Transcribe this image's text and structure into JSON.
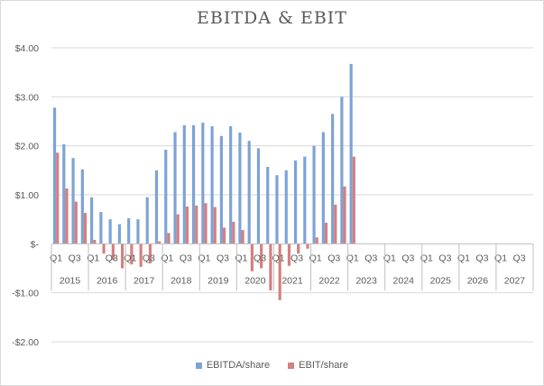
{
  "chart_data": {
    "type": "bar",
    "title": "EBITDA & EBIT",
    "y_ticks": [
      "$4.00",
      "$3.00",
      "$2.00",
      "$1.00",
      "$-",
      "-$1.00",
      "-$2.00"
    ],
    "y_tick_values": [
      4,
      3,
      2,
      1,
      0,
      -1,
      -2
    ],
    "ylim": [
      -2,
      4
    ],
    "grid": "horizontal",
    "legend_position": "bottom",
    "years": [
      "2015",
      "2016",
      "2017",
      "2018",
      "2019",
      "2020",
      "2021",
      "2022",
      "2023",
      "2024",
      "2025",
      "2026",
      "2027"
    ],
    "quarter_labels": [
      "Q1",
      "Q3"
    ],
    "categories": [
      "2015 Q1",
      "2015 Q2",
      "2015 Q3",
      "2015 Q4",
      "2016 Q1",
      "2016 Q2",
      "2016 Q3",
      "2016 Q4",
      "2017 Q1",
      "2017 Q2",
      "2017 Q3",
      "2017 Q4",
      "2018 Q1",
      "2018 Q2",
      "2018 Q3",
      "2018 Q4",
      "2019 Q1",
      "2019 Q2",
      "2019 Q3",
      "2019 Q4",
      "2020 Q1",
      "2020 Q2",
      "2020 Q3",
      "2020 Q4",
      "2021 Q1",
      "2021 Q2",
      "2021 Q3",
      "2021 Q4",
      "2022 Q1",
      "2022 Q2",
      "2022 Q3",
      "2022 Q4",
      "2023 Q1",
      "2023 Q2",
      "2023 Q3",
      "2023 Q4",
      "2024 Q1",
      "2024 Q2",
      "2024 Q3",
      "2024 Q4",
      "2025 Q1",
      "2025 Q2",
      "2025 Q3",
      "2025 Q4",
      "2026 Q1",
      "2026 Q2",
      "2026 Q3",
      "2026 Q4",
      "2027 Q1",
      "2027 Q2",
      "2027 Q3",
      "2027 Q4"
    ],
    "series": [
      {
        "name": "EBITDA/share",
        "color": "#7da3d6",
        "values": [
          2.78,
          2.03,
          1.75,
          1.52,
          0.95,
          0.65,
          0.5,
          0.4,
          0.52,
          0.5,
          0.95,
          1.5,
          1.92,
          2.28,
          2.42,
          2.42,
          2.47,
          2.4,
          2.2,
          2.4,
          2.27,
          2.1,
          1.95,
          1.57,
          1.4,
          1.5,
          1.7,
          1.78,
          2.0,
          2.28,
          2.65,
          3.0,
          3.67,
          null,
          null,
          null,
          null,
          null,
          null,
          null,
          null,
          null,
          null,
          null,
          null,
          null,
          null,
          null,
          null,
          null,
          null,
          null
        ]
      },
      {
        "name": "EBIT/share",
        "color": "#d57f7f",
        "values": [
          1.86,
          1.13,
          0.86,
          0.63,
          0.08,
          -0.2,
          -0.33,
          -0.5,
          -0.42,
          -0.47,
          -0.4,
          0.05,
          0.22,
          0.6,
          0.76,
          0.78,
          0.83,
          0.75,
          0.33,
          0.45,
          0.28,
          -0.56,
          -0.5,
          -0.95,
          -1.15,
          -0.45,
          -0.2,
          -0.1,
          0.13,
          0.43,
          0.8,
          1.17,
          1.78,
          null,
          null,
          null,
          null,
          null,
          null,
          null,
          null,
          null,
          null,
          null,
          null,
          null,
          null,
          null,
          null,
          null,
          null,
          null
        ]
      }
    ]
  }
}
